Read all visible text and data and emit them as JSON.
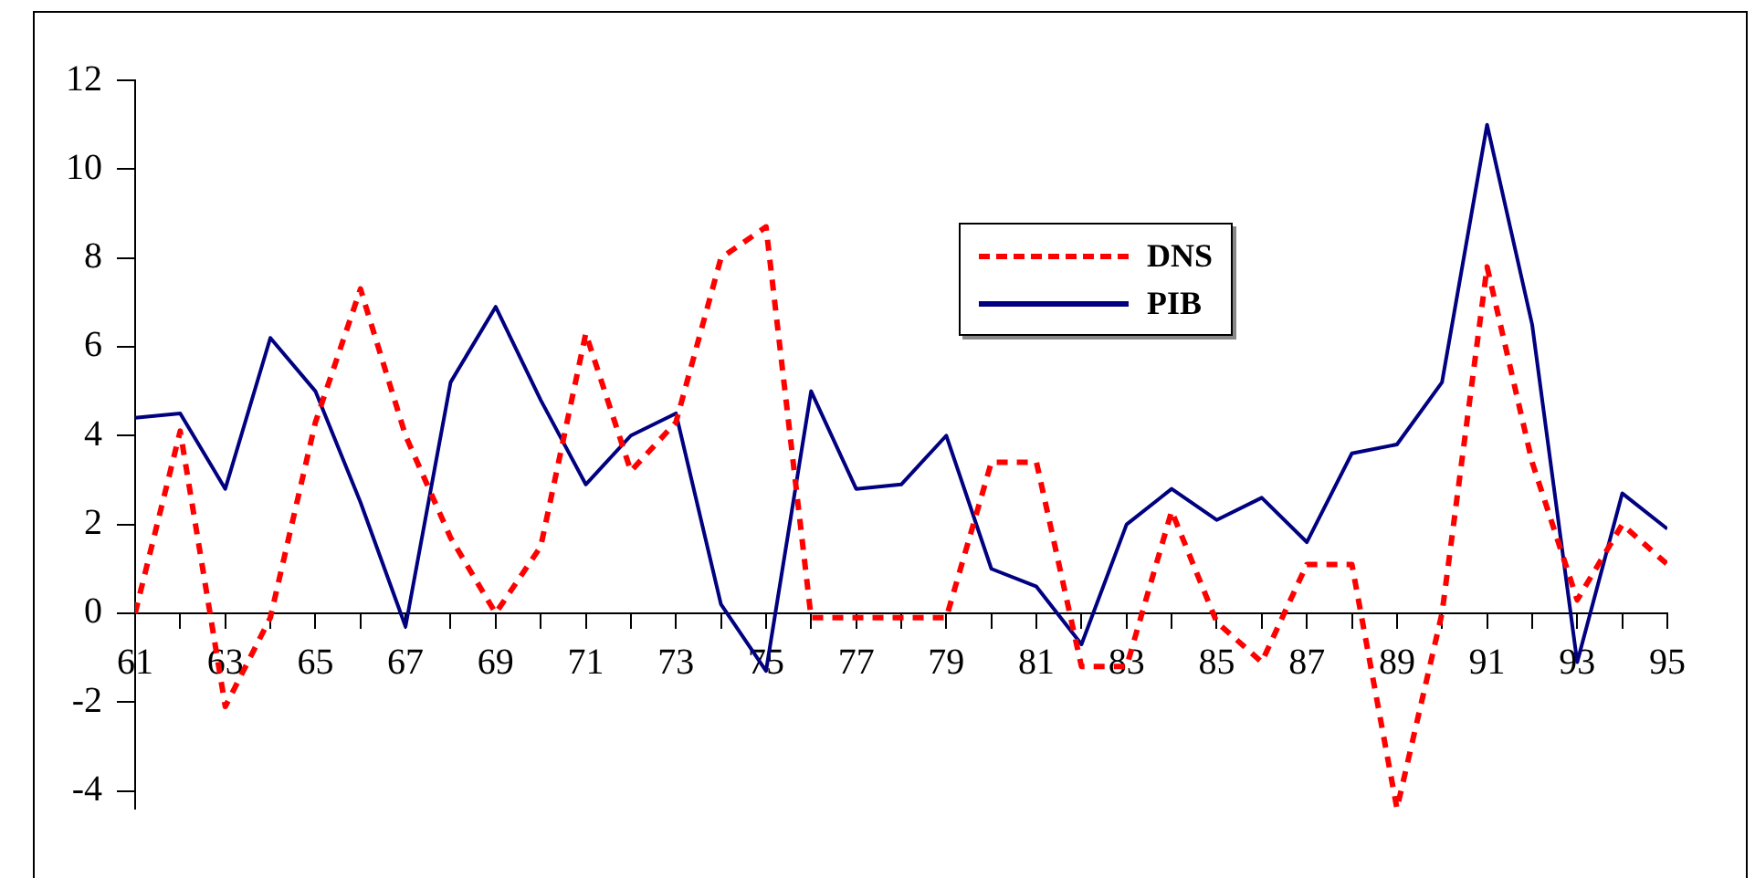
{
  "chart_data": {
    "type": "line",
    "x": [
      61,
      62,
      63,
      64,
      65,
      66,
      67,
      68,
      69,
      70,
      71,
      72,
      73,
      74,
      75,
      76,
      77,
      78,
      79,
      80,
      81,
      82,
      83,
      84,
      85,
      86,
      87,
      88,
      89,
      90,
      91,
      92,
      93,
      94,
      95
    ],
    "series": [
      {
        "name": "DNS",
        "color": "#ff0000",
        "line_style": "dashed",
        "values": [
          0,
          4.1,
          -2.1,
          -0.1,
          4.3,
          7.3,
          4.0,
          1.7,
          0,
          1.5,
          6.3,
          3.2,
          4.3,
          8.0,
          8.7,
          -0.1,
          -0.1,
          -0.1,
          -0.1,
          3.4,
          3.4,
          -1.2,
          -1.2,
          2.3,
          -0.2,
          -1.1,
          1.1,
          1.1,
          -4.4,
          0,
          7.8,
          3.4,
          0.3,
          2.0,
          1.1
        ]
      },
      {
        "name": "PIB",
        "color": "#000080",
        "line_style": "solid",
        "values": [
          4.4,
          4.5,
          2.8,
          6.2,
          5.0,
          2.5,
          -0.3,
          5.2,
          6.9,
          4.8,
          2.9,
          4.0,
          4.5,
          0.2,
          -1.3,
          5.0,
          2.8,
          2.9,
          4.0,
          1.0,
          0.6,
          -0.7,
          2.0,
          2.8,
          2.1,
          2.6,
          1.6,
          3.6,
          3.8,
          5.2,
          11.0,
          6.5,
          -1.1,
          2.7,
          1.9
        ]
      }
    ],
    "xlim": [
      61,
      95
    ],
    "xticks": [
      61,
      {
        "value": 62,
        "label": null
      },
      63,
      {
        "value": 64,
        "label": null
      },
      65,
      {
        "value": 66,
        "label": null
      },
      67,
      {
        "value": 68,
        "label": null
      },
      69,
      {
        "value": 70,
        "label": null
      },
      71,
      {
        "value": 72,
        "label": null
      },
      73,
      {
        "value": 74,
        "label": null
      },
      75,
      {
        "value": 76,
        "label": null
      },
      77,
      {
        "value": 78,
        "label": null
      },
      79,
      {
        "value": 80,
        "label": null
      },
      81,
      {
        "value": 82,
        "label": null
      },
      83,
      {
        "value": 84,
        "label": null
      },
      85,
      {
        "value": 86,
        "label": null
      },
      87,
      {
        "value": 88,
        "label": null
      },
      89,
      {
        "value": 90,
        "label": null
      },
      91,
      {
        "value": 92,
        "label": null
      },
      93,
      {
        "value": 94,
        "label": null
      },
      95
    ],
    "ylim": [
      -4.4,
      12
    ],
    "yticks": [
      -4,
      -2,
      0,
      2,
      4,
      6,
      8,
      10,
      12
    ],
    "grid": false,
    "legend": "top right",
    "marker": "none"
  }
}
